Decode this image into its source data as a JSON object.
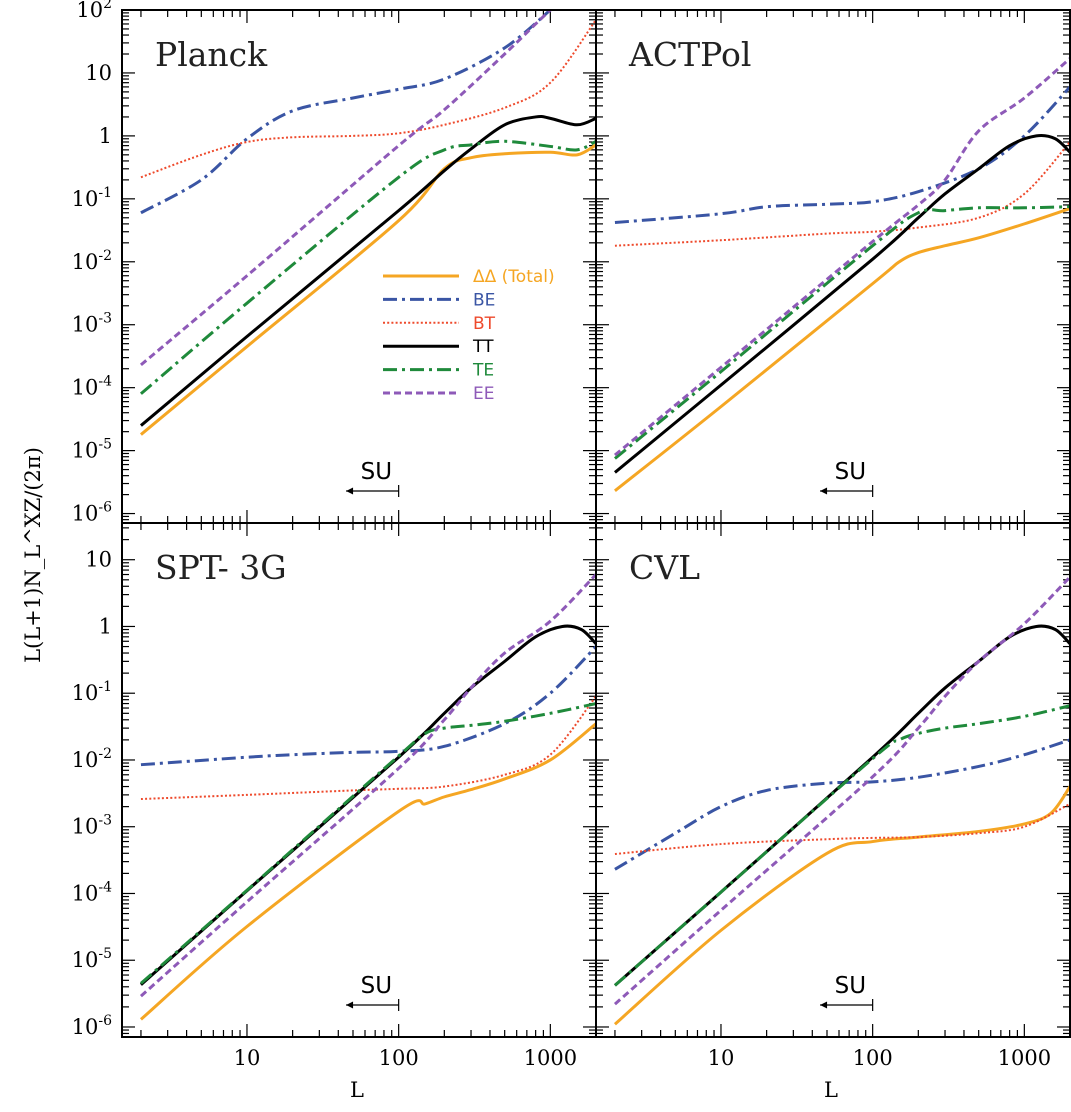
{
  "figure": {
    "ylabel": "L(L+1)N_L^XZ/(2π)",
    "xlabel": "L",
    "x_ticks": [
      {
        "v": 10,
        "label": "10"
      },
      {
        "v": 100,
        "label": "100"
      },
      {
        "v": 1000,
        "label": "1000"
      }
    ],
    "y_ticks_top": [
      {
        "v": -6,
        "base": "10",
        "exp": "-6"
      },
      {
        "v": -5,
        "base": "10",
        "exp": "-5"
      },
      {
        "v": -4,
        "base": "10",
        "exp": "-4"
      },
      {
        "v": -3,
        "base": "10",
        "exp": "-3"
      },
      {
        "v": -2,
        "base": "10",
        "exp": "-2"
      },
      {
        "v": -1,
        "base": "10",
        "exp": "-1"
      },
      {
        "v": 0,
        "base": "1",
        "exp": ""
      },
      {
        "v": 1,
        "base": "10",
        "exp": ""
      },
      {
        "v": 2,
        "base": "10",
        "exp": "2"
      }
    ],
    "y_ticks_bottom": [
      {
        "v": -6,
        "base": "10",
        "exp": "-6"
      },
      {
        "v": -5,
        "base": "10",
        "exp": "-5"
      },
      {
        "v": -4,
        "base": "10",
        "exp": "-4"
      },
      {
        "v": -3,
        "base": "10",
        "exp": "-3"
      },
      {
        "v": -2,
        "base": "10",
        "exp": "-2"
      },
      {
        "v": -1,
        "base": "10",
        "exp": "-1"
      },
      {
        "v": 0,
        "base": "1",
        "exp": ""
      },
      {
        "v": 1,
        "base": "10",
        "exp": ""
      }
    ],
    "annotation": {
      "text": "SU",
      "L_from": 100,
      "L_to": 45
    }
  },
  "chart_data": [
    {
      "type": "line",
      "title": "Planck",
      "xscale": "log",
      "yscale": "log",
      "xlim": [
        1.5,
        2000
      ],
      "ylim": [
        1e-06,
        100
      ],
      "legend": {
        "placement": "center",
        "entries": [
          {
            "name": "ΔΔ (Total)",
            "color": "#f5a623",
            "dash": "solid"
          },
          {
            "name": "BE",
            "color": "#3a55a4",
            "dash": "dashdot"
          },
          {
            "name": "BT",
            "color": "#ee4a2c",
            "dash": "dotted"
          },
          {
            "name": "TT",
            "color": "#000000",
            "dash": "solid"
          },
          {
            "name": "TE",
            "color": "#1f8a3b",
            "dash": "dashdot"
          },
          {
            "name": "EE",
            "color": "#8e5ab8",
            "dash": "dashed"
          }
        ]
      },
      "series": [
        {
          "name": "ΔΔ (Total)",
          "x": [
            2,
            10,
            100,
            200,
            300,
            500,
            1000,
            1500,
            2000
          ],
          "y": [
            1.8e-05,
            0.00045,
            0.045,
            0.3,
            0.45,
            0.52,
            0.55,
            0.5,
            0.72
          ]
        },
        {
          "name": "BE",
          "x": [
            2,
            5,
            10,
            20,
            50,
            100,
            200,
            500,
            1000
          ],
          "y": [
            0.06,
            0.2,
            0.9,
            2.5,
            4.0,
            5.5,
            8.0,
            25,
            100
          ]
        },
        {
          "name": "BT",
          "x": [
            2,
            5,
            10,
            20,
            50,
            100,
            200,
            500,
            1000,
            2000
          ],
          "y": [
            0.22,
            0.5,
            0.8,
            0.95,
            1.0,
            1.1,
            1.5,
            2.8,
            7.0,
            70
          ]
        },
        {
          "name": "TT",
          "x": [
            2,
            10,
            100,
            200,
            300,
            500,
            800,
            1000,
            1500,
            2000
          ],
          "y": [
            2.5e-05,
            0.00065,
            0.065,
            0.28,
            0.62,
            1.5,
            2.0,
            1.9,
            1.5,
            1.9
          ]
        },
        {
          "name": "TE",
          "x": [
            2,
            10,
            100,
            200,
            300,
            500,
            1000,
            1500,
            2000
          ],
          "y": [
            8e-05,
            0.0022,
            0.22,
            0.6,
            0.72,
            0.82,
            0.68,
            0.6,
            0.82
          ]
        },
        {
          "name": "EE",
          "x": [
            2,
            10,
            100,
            200,
            500,
            800,
            1000
          ],
          "y": [
            0.00023,
            0.006,
            0.7,
            2.6,
            20,
            60,
            100
          ]
        }
      ]
    },
    {
      "type": "line",
      "title": "ACTPol",
      "xscale": "log",
      "yscale": "log",
      "xlim": [
        1.5,
        2000
      ],
      "ylim": [
        1e-06,
        100
      ],
      "series": [
        {
          "name": "ΔΔ (Total)",
          "x": [
            2,
            10,
            100,
            150,
            200,
            300,
            500,
            1000,
            2000
          ],
          "y": [
            2.3e-06,
            5e-05,
            0.0045,
            0.01,
            0.014,
            0.018,
            0.024,
            0.04,
            0.07
          ]
        },
        {
          "name": "BE",
          "x": [
            2,
            10,
            20,
            50,
            100,
            200,
            500,
            1000,
            2000
          ],
          "y": [
            0.042,
            0.058,
            0.075,
            0.082,
            0.09,
            0.13,
            0.3,
            1.0,
            6.0
          ]
        },
        {
          "name": "BT",
          "x": [
            2,
            10,
            50,
            100,
            200,
            500,
            1000,
            2000
          ],
          "y": [
            0.018,
            0.022,
            0.028,
            0.03,
            0.035,
            0.05,
            0.12,
            0.8
          ]
        },
        {
          "name": "TT",
          "x": [
            2,
            10,
            100,
            200,
            300,
            500,
            800,
            1200,
            1600,
            2000
          ],
          "y": [
            4.5e-06,
            0.00011,
            0.011,
            0.05,
            0.12,
            0.3,
            0.7,
            1.0,
            0.9,
            0.55
          ]
        },
        {
          "name": "TE",
          "x": [
            2,
            10,
            100,
            200,
            300,
            500,
            1000,
            2000
          ],
          "y": [
            7.5e-06,
            0.00018,
            0.018,
            0.06,
            0.065,
            0.072,
            0.072,
            0.075
          ]
        },
        {
          "name": "EE",
          "x": [
            2,
            10,
            100,
            200,
            300,
            500,
            1000,
            2000
          ],
          "y": [
            8.5e-06,
            0.00021,
            0.021,
            0.08,
            0.2,
            1.2,
            4.0,
            17
          ]
        }
      ]
    },
    {
      "type": "line",
      "title": "SPT- 3G",
      "xscale": "log",
      "yscale": "log",
      "xlim": [
        1.5,
        2000
      ],
      "ylim": [
        1e-06,
        100
      ],
      "series": [
        {
          "name": "ΔΔ (Total)",
          "x": [
            2,
            10,
            100,
            150,
            200,
            300,
            500,
            1000,
            2000
          ],
          "y": [
            1.3e-06,
            3.2e-05,
            0.0017,
            0.0022,
            0.0028,
            0.0036,
            0.0052,
            0.01,
            0.035
          ]
        },
        {
          "name": "BE",
          "x": [
            2,
            10,
            20,
            50,
            100,
            200,
            500,
            1000,
            2000
          ],
          "y": [
            0.0085,
            0.011,
            0.012,
            0.013,
            0.0135,
            0.016,
            0.035,
            0.1,
            0.5
          ]
        },
        {
          "name": "BT",
          "x": [
            2,
            10,
            50,
            100,
            200,
            500,
            1000,
            2000
          ],
          "y": [
            0.0026,
            0.003,
            0.0035,
            0.0037,
            0.004,
            0.006,
            0.012,
            0.09
          ]
        },
        {
          "name": "TT",
          "x": [
            2,
            10,
            100,
            200,
            300,
            500,
            800,
            1200,
            1600,
            2000
          ],
          "y": [
            4.3e-06,
            0.00011,
            0.011,
            0.05,
            0.12,
            0.3,
            0.7,
            1.0,
            0.9,
            0.55
          ]
        },
        {
          "name": "TE",
          "x": [
            2,
            10,
            100,
            150,
            200,
            300,
            500,
            1000,
            2000
          ],
          "y": [
            4.5e-06,
            0.000112,
            0.0115,
            0.025,
            0.03,
            0.033,
            0.038,
            0.05,
            0.07
          ]
        },
        {
          "name": "EE",
          "x": [
            2,
            10,
            100,
            200,
            300,
            500,
            1000,
            2000
          ],
          "y": [
            2.9e-06,
            7.5e-05,
            0.0075,
            0.04,
            0.12,
            0.4,
            1.2,
            6.0
          ]
        }
      ]
    },
    {
      "type": "line",
      "title": "CVL",
      "xscale": "log",
      "yscale": "log",
      "xlim": [
        1.5,
        2000
      ],
      "ylim": [
        1e-06,
        100
      ],
      "series": [
        {
          "name": "ΔΔ (Total)",
          "x": [
            2,
            10,
            50,
            100,
            200,
            500,
            1000,
            1500,
            2000
          ],
          "y": [
            1.1e-06,
            2.8e-05,
            0.0004,
            0.0006,
            0.0007,
            0.00085,
            0.0011,
            0.0016,
            0.004
          ]
        },
        {
          "name": "BE",
          "x": [
            2,
            5,
            10,
            20,
            50,
            100,
            200,
            500,
            1000,
            2000
          ],
          "y": [
            0.00023,
            0.0008,
            0.002,
            0.0035,
            0.0045,
            0.0047,
            0.0055,
            0.008,
            0.012,
            0.02
          ]
        },
        {
          "name": "BT",
          "x": [
            2,
            10,
            50,
            100,
            200,
            500,
            1000,
            2000
          ],
          "y": [
            0.00039,
            0.00055,
            0.00065,
            0.00068,
            0.0007,
            0.0008,
            0.001,
            0.0022
          ]
        },
        {
          "name": "TT",
          "x": [
            2,
            10,
            100,
            200,
            300,
            500,
            800,
            1200,
            1600,
            2000
          ],
          "y": [
            4.2e-06,
            0.000105,
            0.011,
            0.05,
            0.12,
            0.3,
            0.7,
            1.0,
            0.9,
            0.55
          ]
        },
        {
          "name": "TE",
          "x": [
            2,
            10,
            100,
            150,
            200,
            300,
            500,
            1000,
            2000
          ],
          "y": [
            4.2e-06,
            0.000105,
            0.0105,
            0.02,
            0.025,
            0.03,
            0.035,
            0.045,
            0.065
          ]
        },
        {
          "name": "EE",
          "x": [
            2,
            10,
            100,
            200,
            300,
            500,
            1000,
            2000
          ],
          "y": [
            2.2e-06,
            5.6e-05,
            0.0056,
            0.03,
            0.09,
            0.3,
            1.1,
            5.5
          ]
        }
      ]
    }
  ]
}
